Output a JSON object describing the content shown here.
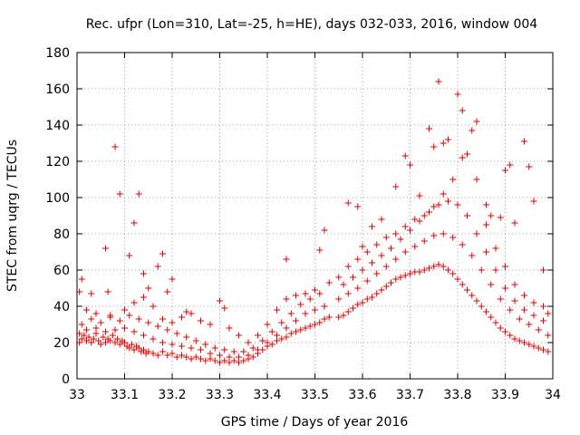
{
  "chart_data": {
    "type": "scatter",
    "title": "Rec. ufpr (Lon=310, Lat=-25, h=HE), days 032-033, 2016, window 004",
    "xlabel": "GPS time / Days of year 2016",
    "ylabel": "STEC from uqrg / TECUs",
    "xlim": [
      33,
      34
    ],
    "ylim": [
      0,
      180
    ],
    "x_ticks": [
      "33",
      "33.1",
      "33.2",
      "33.3",
      "33.4",
      "33.5",
      "33.6",
      "33.7",
      "33.8",
      "33.9",
      "34"
    ],
    "y_ticks": [
      "0",
      "20",
      "40",
      "60",
      "80",
      "100",
      "120",
      "140",
      "160",
      "180"
    ],
    "grid": true,
    "marker": "plus",
    "color": "#e00000",
    "series": [
      {
        "points": [
          [
            33.005,
            20
          ],
          [
            33.01,
            22
          ],
          [
            33.015,
            24
          ],
          [
            33.02,
            21
          ],
          [
            33.025,
            23
          ],
          [
            33.03,
            20
          ],
          [
            33.035,
            22
          ],
          [
            33.04,
            25
          ],
          [
            33.045,
            21
          ],
          [
            33.05,
            19
          ],
          [
            33.055,
            23
          ],
          [
            33.06,
            20
          ],
          [
            33.065,
            22
          ],
          [
            33.07,
            21
          ],
          [
            33.075,
            24
          ],
          [
            33.08,
            20
          ],
          [
            33.085,
            22
          ],
          [
            33.09,
            19
          ],
          [
            33.095,
            21
          ],
          [
            33.1,
            20
          ],
          [
            33.105,
            18
          ],
          [
            33.11,
            17
          ],
          [
            33.115,
            19
          ],
          [
            33.12,
            16
          ],
          [
            33.125,
            18
          ],
          [
            33.13,
            17
          ],
          [
            33.135,
            15
          ],
          [
            33.14,
            16
          ],
          [
            33.145,
            14
          ],
          [
            33.15,
            15
          ],
          [
            33.16,
            14
          ],
          [
            33.17,
            13
          ],
          [
            33.18,
            15
          ],
          [
            33.19,
            13
          ],
          [
            33.2,
            14
          ],
          [
            33.21,
            12
          ],
          [
            33.22,
            13
          ],
          [
            33.23,
            12
          ],
          [
            33.24,
            11
          ],
          [
            33.25,
            12
          ],
          [
            33.26,
            11
          ],
          [
            33.27,
            10
          ],
          [
            33.28,
            11
          ],
          [
            33.29,
            10
          ],
          [
            33.3,
            9
          ],
          [
            33.31,
            10
          ],
          [
            33.32,
            9
          ],
          [
            33.33,
            10
          ],
          [
            33.34,
            9
          ],
          [
            33.35,
            10
          ],
          [
            33.36,
            11
          ],
          [
            33.37,
            12
          ],
          [
            33.38,
            14
          ],
          [
            33.39,
            16
          ],
          [
            33.4,
            18
          ],
          [
            33.41,
            19
          ],
          [
            33.42,
            21
          ],
          [
            33.43,
            22
          ],
          [
            33.44,
            23
          ],
          [
            33.45,
            25
          ],
          [
            33.46,
            26
          ],
          [
            33.47,
            27
          ],
          [
            33.48,
            28
          ],
          [
            33.49,
            29
          ],
          [
            33.5,
            30
          ],
          [
            33.51,
            31
          ],
          [
            33.52,
            33
          ],
          [
            33.53,
            34
          ],
          [
            33.55,
            34
          ],
          [
            33.56,
            35
          ],
          [
            33.57,
            37
          ],
          [
            33.58,
            39
          ],
          [
            33.59,
            41
          ],
          [
            33.6,
            42
          ],
          [
            33.61,
            44
          ],
          [
            33.62,
            45
          ],
          [
            33.63,
            47
          ],
          [
            33.64,
            49
          ],
          [
            33.65,
            51
          ],
          [
            33.66,
            53
          ],
          [
            33.67,
            55
          ],
          [
            33.68,
            56
          ],
          [
            33.69,
            57
          ],
          [
            33.7,
            58
          ],
          [
            33.71,
            59
          ],
          [
            33.72,
            59
          ],
          [
            33.73,
            60
          ],
          [
            33.74,
            61
          ],
          [
            33.75,
            62
          ],
          [
            33.76,
            63
          ],
          [
            33.77,
            62
          ],
          [
            33.78,
            60
          ],
          [
            33.79,
            58
          ],
          [
            33.8,
            55
          ],
          [
            33.81,
            52
          ],
          [
            33.82,
            49
          ],
          [
            33.83,
            46
          ],
          [
            33.84,
            43
          ],
          [
            33.85,
            40
          ],
          [
            33.86,
            37
          ],
          [
            33.87,
            34
          ],
          [
            33.88,
            31
          ],
          [
            33.89,
            28
          ],
          [
            33.9,
            26
          ],
          [
            33.91,
            24
          ],
          [
            33.92,
            22
          ],
          [
            33.93,
            21
          ],
          [
            33.94,
            20
          ],
          [
            33.95,
            19
          ],
          [
            33.96,
            18
          ],
          [
            33.97,
            17
          ],
          [
            33.98,
            16
          ],
          [
            33.99,
            15
          ]
        ]
      },
      {
        "points": [
          [
            33.005,
            25
          ],
          [
            33.02,
            27
          ],
          [
            33.04,
            28
          ],
          [
            33.06,
            26
          ],
          [
            33.08,
            27
          ],
          [
            33.1,
            28
          ],
          [
            33.12,
            26
          ],
          [
            33.14,
            24
          ],
          [
            33.16,
            22
          ],
          [
            33.18,
            20
          ],
          [
            33.2,
            19
          ],
          [
            33.22,
            18
          ],
          [
            33.24,
            17
          ],
          [
            33.26,
            16
          ],
          [
            33.28,
            14
          ],
          [
            33.3,
            13
          ],
          [
            33.32,
            12
          ],
          [
            33.34,
            12
          ],
          [
            33.36,
            13
          ],
          [
            33.38,
            16
          ],
          [
            33.4,
            20
          ],
          [
            33.42,
            24
          ],
          [
            33.44,
            28
          ],
          [
            33.46,
            32
          ],
          [
            33.48,
            36
          ],
          [
            33.5,
            38
          ],
          [
            33.52,
            40
          ],
          [
            33.55,
            44
          ],
          [
            33.57,
            47
          ],
          [
            33.59,
            50
          ],
          [
            33.61,
            54
          ],
          [
            33.63,
            58
          ],
          [
            33.65,
            62
          ],
          [
            33.67,
            66
          ],
          [
            33.69,
            70
          ],
          [
            33.71,
            73
          ],
          [
            33.73,
            76
          ],
          [
            33.75,
            79
          ],
          [
            33.77,
            80
          ],
          [
            33.79,
            78
          ],
          [
            33.81,
            74
          ],
          [
            33.83,
            68
          ],
          [
            33.85,
            60
          ],
          [
            33.87,
            52
          ],
          [
            33.89,
            44
          ],
          [
            33.91,
            38
          ],
          [
            33.93,
            33
          ],
          [
            33.95,
            30
          ],
          [
            33.97,
            27
          ],
          [
            33.99,
            24
          ]
        ]
      },
      {
        "points": [
          [
            33.01,
            30
          ],
          [
            33.03,
            33
          ],
          [
            33.05,
            31
          ],
          [
            33.07,
            34
          ],
          [
            33.09,
            32
          ],
          [
            33.11,
            35
          ],
          [
            33.13,
            33
          ],
          [
            33.15,
            31
          ],
          [
            33.17,
            29
          ],
          [
            33.19,
            27
          ],
          [
            33.21,
            25
          ],
          [
            33.23,
            23
          ],
          [
            33.25,
            21
          ],
          [
            33.27,
            19
          ],
          [
            33.29,
            17
          ],
          [
            33.31,
            16
          ],
          [
            33.33,
            15
          ],
          [
            33.35,
            15
          ],
          [
            33.37,
            17
          ],
          [
            33.39,
            21
          ],
          [
            33.41,
            26
          ],
          [
            33.43,
            31
          ],
          [
            33.45,
            36
          ],
          [
            33.47,
            41
          ],
          [
            33.49,
            44
          ],
          [
            33.51,
            47
          ],
          [
            33.56,
            52
          ],
          [
            33.58,
            56
          ],
          [
            33.6,
            60
          ],
          [
            33.62,
            64
          ],
          [
            33.64,
            68
          ],
          [
            33.66,
            72
          ],
          [
            33.68,
            77
          ],
          [
            33.7,
            82
          ],
          [
            33.72,
            87
          ],
          [
            33.74,
            92
          ],
          [
            33.76,
            96
          ],
          [
            33.78,
            98
          ],
          [
            33.8,
            96
          ],
          [
            33.82,
            90
          ],
          [
            33.84,
            80
          ],
          [
            33.86,
            70
          ],
          [
            33.88,
            60
          ],
          [
            33.9,
            50
          ],
          [
            33.92,
            43
          ],
          [
            33.94,
            38
          ],
          [
            33.96,
            35
          ],
          [
            33.98,
            32
          ]
        ]
      },
      {
        "points": [
          [
            33.005,
            48
          ],
          [
            33.01,
            55
          ],
          [
            33.03,
            47
          ],
          [
            33.06,
            72
          ],
          [
            33.065,
            48
          ],
          [
            33.08,
            128
          ],
          [
            33.09,
            102
          ],
          [
            33.11,
            68
          ],
          [
            33.12,
            86
          ],
          [
            33.13,
            102
          ],
          [
            33.14,
            58
          ],
          [
            33.15,
            50
          ],
          [
            33.17,
            62
          ],
          [
            33.18,
            69
          ],
          [
            33.19,
            48
          ],
          [
            33.2,
            55
          ],
          [
            33.23,
            37
          ],
          [
            33.3,
            43
          ],
          [
            33.31,
            39
          ],
          [
            33.44,
            66
          ],
          [
            33.51,
            71
          ],
          [
            33.52,
            82
          ],
          [
            33.57,
            97
          ],
          [
            33.59,
            95
          ],
          [
            33.6,
            73
          ],
          [
            33.62,
            84
          ],
          [
            33.64,
            88
          ],
          [
            33.67,
            106
          ],
          [
            33.69,
            123
          ],
          [
            33.7,
            118
          ],
          [
            33.72,
            101
          ],
          [
            33.74,
            138
          ],
          [
            33.75,
            128
          ],
          [
            33.76,
            164
          ],
          [
            33.77,
            130
          ],
          [
            33.78,
            132
          ],
          [
            33.8,
            157
          ],
          [
            33.81,
            148
          ],
          [
            33.83,
            137
          ],
          [
            33.84,
            142
          ],
          [
            33.86,
            96
          ],
          [
            33.87,
            90
          ],
          [
            33.89,
            89
          ],
          [
            33.9,
            115
          ],
          [
            33.91,
            118
          ],
          [
            33.92,
            86
          ],
          [
            33.94,
            131
          ],
          [
            33.95,
            117
          ],
          [
            33.96,
            98
          ],
          [
            33.98,
            60
          ]
        ]
      },
      {
        "points": [
          [
            33.02,
            38
          ],
          [
            33.04,
            36
          ],
          [
            33.07,
            35
          ],
          [
            33.1,
            38
          ],
          [
            33.12,
            42
          ],
          [
            33.14,
            45
          ],
          [
            33.16,
            40
          ],
          [
            33.18,
            33
          ],
          [
            33.2,
            31
          ],
          [
            33.22,
            34
          ],
          [
            33.24,
            36
          ],
          [
            33.26,
            32
          ],
          [
            33.28,
            30
          ],
          [
            33.32,
            28
          ],
          [
            33.34,
            24
          ],
          [
            33.36,
            20
          ],
          [
            33.38,
            24
          ],
          [
            33.4,
            30
          ],
          [
            33.42,
            38
          ],
          [
            33.44,
            44
          ],
          [
            33.46,
            46
          ],
          [
            33.48,
            47
          ],
          [
            33.5,
            49
          ],
          [
            33.53,
            53
          ],
          [
            33.55,
            56
          ],
          [
            33.57,
            62
          ],
          [
            33.59,
            66
          ],
          [
            33.61,
            70
          ],
          [
            33.63,
            74
          ],
          [
            33.65,
            78
          ],
          [
            33.67,
            80
          ],
          [
            33.69,
            84
          ],
          [
            33.71,
            88
          ],
          [
            33.73,
            90
          ],
          [
            33.75,
            95
          ],
          [
            33.77,
            102
          ],
          [
            33.79,
            110
          ],
          [
            33.81,
            122
          ],
          [
            33.82,
            124
          ],
          [
            33.84,
            110
          ],
          [
            33.86,
            85
          ],
          [
            33.88,
            72
          ],
          [
            33.9,
            62
          ],
          [
            33.92,
            52
          ],
          [
            33.94,
            46
          ],
          [
            33.96,
            42
          ],
          [
            33.98,
            40
          ],
          [
            33.99,
            36
          ]
        ]
      }
    ]
  }
}
